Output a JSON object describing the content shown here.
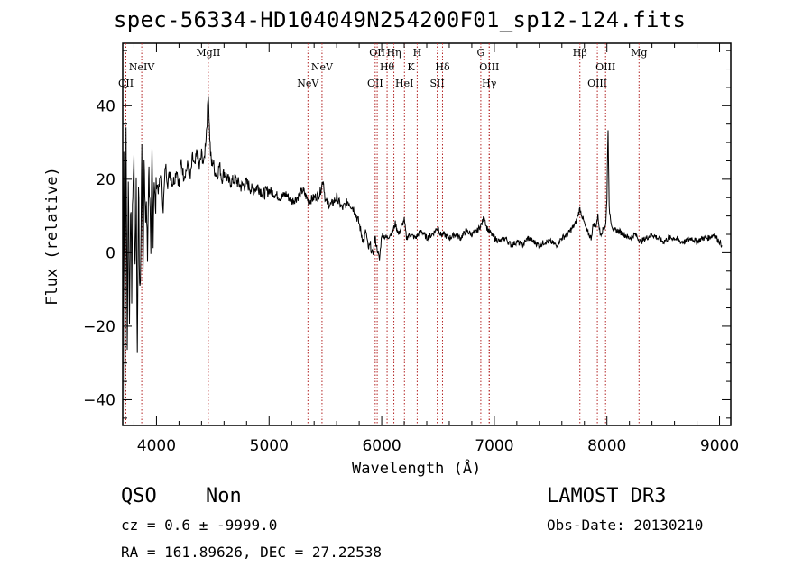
{
  "header": {
    "title": "spec-56334-HD104049N254200F01_sp12-124.fits"
  },
  "footer": {
    "class": "QSO",
    "subclass": "Non",
    "survey": "LAMOST DR3",
    "cz": "cz = 0.6 ± -9999.0",
    "obs_date": "Obs-Date: 20130210",
    "radec": "RA = 161.89626, DEC =  27.22538"
  },
  "chart_data": {
    "type": "line",
    "title": "spec-56334-HD104049N254200F01_sp12-124.fits",
    "xlabel": "Wavelength (Å)",
    "ylabel": "Flux (relative)",
    "xlim": [
      3700,
      9100
    ],
    "ylim": [
      -47,
      57
    ],
    "x_ticks": [
      4000,
      5000,
      6000,
      7000,
      8000,
      9000
    ],
    "y_ticks": [
      -40,
      -20,
      0,
      20,
      40
    ],
    "y_tick_labels": [
      "−40",
      "−20",
      "0",
      "20",
      "40"
    ],
    "line_color": "#000000",
    "marker_color": "#b22222",
    "series": [
      {
        "name": "spectrum",
        "x": [
          3700,
          3710,
          3720,
          3730,
          3740,
          3750,
          3760,
          3770,
          3780,
          3790,
          3800,
          3810,
          3820,
          3830,
          3840,
          3850,
          3860,
          3870,
          3880,
          3890,
          3900,
          3910,
          3920,
          3930,
          3940,
          3950,
          3960,
          3970,
          3980,
          3990,
          4000,
          4020,
          4040,
          4060,
          4080,
          4100,
          4120,
          4140,
          4160,
          4180,
          4200,
          4220,
          4240,
          4260,
          4280,
          4300,
          4320,
          4340,
          4360,
          4380,
          4400,
          4420,
          4440,
          4450,
          4460,
          4470,
          4480,
          4490,
          4500,
          4520,
          4540,
          4560,
          4580,
          4600,
          4650,
          4700,
          4750,
          4800,
          4850,
          4900,
          4950,
          5000,
          5050,
          5100,
          5150,
          5200,
          5250,
          5300,
          5350,
          5400,
          5450,
          5480,
          5500,
          5550,
          5600,
          5650,
          5700,
          5750,
          5800,
          5820,
          5840,
          5860,
          5880,
          5900,
          5920,
          5940,
          5960,
          5980,
          6000,
          6050,
          6100,
          6120,
          6150,
          6200,
          6220,
          6250,
          6300,
          6350,
          6400,
          6450,
          6500,
          6520,
          6550,
          6600,
          6650,
          6700,
          6750,
          6800,
          6850,
          6870,
          6890,
          6910,
          6930,
          6950,
          7000,
          7050,
          7100,
          7150,
          7200,
          7250,
          7300,
          7350,
          7400,
          7450,
          7500,
          7550,
          7600,
          7650,
          7700,
          7720,
          7740,
          7760,
          7780,
          7800,
          7820,
          7840,
          7860,
          7880,
          7900,
          7920,
          7940,
          7960,
          7980,
          7990,
          8000,
          8010,
          8020,
          8040,
          8060,
          8100,
          8150,
          8200,
          8250,
          8300,
          8350,
          8400,
          8450,
          8500,
          8550,
          8600,
          8650,
          8700,
          8750,
          8800,
          8850,
          8900,
          8950,
          9000,
          9020
        ],
        "y": [
          -44,
          30,
          -40,
          35,
          -28,
          22,
          -20,
          15,
          -10,
          18,
          25,
          -8,
          20,
          -30,
          22,
          -12,
          -2,
          28,
          -5,
          26,
          8,
          14,
          -2,
          23,
          17,
          -5,
          26,
          6,
          22,
          10,
          19,
          17,
          22,
          12,
          24,
          19,
          22,
          19,
          20,
          23,
          18,
          25,
          21,
          22,
          24,
          20,
          26,
          23,
          28,
          23,
          27,
          24,
          32,
          36,
          44,
          34,
          27,
          24,
          25,
          22,
          21,
          24,
          20,
          22,
          19,
          20,
          18,
          19,
          17,
          18,
          16,
          17,
          16,
          15,
          16,
          14,
          15,
          17,
          14,
          15,
          16,
          20,
          14,
          13,
          15,
          12,
          14,
          12,
          8,
          5,
          3,
          6,
          1,
          2,
          -1,
          4,
          1,
          -2,
          5,
          4,
          6,
          8,
          5,
          9,
          4,
          5,
          4,
          6,
          4,
          5,
          7,
          5,
          5,
          4,
          5,
          4,
          6,
          5,
          6,
          7,
          8,
          10,
          7,
          6,
          4,
          3,
          4,
          2,
          3,
          2,
          4,
          3,
          2,
          3,
          3,
          2,
          4,
          5,
          7,
          8,
          10,
          12,
          10,
          8,
          6,
          5,
          4,
          8,
          7,
          10,
          5,
          6,
          7,
          8,
          15,
          34,
          12,
          8,
          6,
          6,
          5,
          4,
          5,
          3,
          4,
          5,
          4,
          3,
          4,
          4,
          3,
          3,
          4,
          3,
          4,
          4,
          5,
          3,
          2
        ]
      }
    ],
    "lines": [
      {
        "label": "CII",
        "x": 3728,
        "row": 2
      },
      {
        "label": "NeIV",
        "x": 3869,
        "row": 1
      },
      {
        "label": "MgII",
        "x": 4460,
        "row": 0
      },
      {
        "label": "NeV",
        "x": 5345,
        "row": 2
      },
      {
        "label": "NeV",
        "x": 5470,
        "row": 1
      },
      {
        "label": "OII",
        "x": 5942,
        "row": 2
      },
      {
        "label": "OII",
        "x": 5960,
        "row": 0
      },
      {
        "label": "Hθ",
        "x": 6048,
        "row": 1
      },
      {
        "label": "Hη",
        "x": 6108,
        "row": 0
      },
      {
        "label": "HeI",
        "x": 6202,
        "row": 2
      },
      {
        "label": "K",
        "x": 6260,
        "row": 1
      },
      {
        "label": "H",
        "x": 6315,
        "row": 0
      },
      {
        "label": "SII",
        "x": 6493,
        "row": 2
      },
      {
        "label": "Hδ",
        "x": 6540,
        "row": 1
      },
      {
        "label": "G",
        "x": 6880,
        "row": 0
      },
      {
        "label": "OIII",
        "x": 6955,
        "row": 1
      },
      {
        "label": "Hγ",
        "x": 6955,
        "row": 2
      },
      {
        "label": "Hβ",
        "x": 7760,
        "row": 0
      },
      {
        "label": "OIII",
        "x": 7915,
        "row": 2
      },
      {
        "label": "OIII",
        "x": 7988,
        "row": 1
      },
      {
        "label": "Mg",
        "x": 8285,
        "row": 0
      }
    ]
  }
}
